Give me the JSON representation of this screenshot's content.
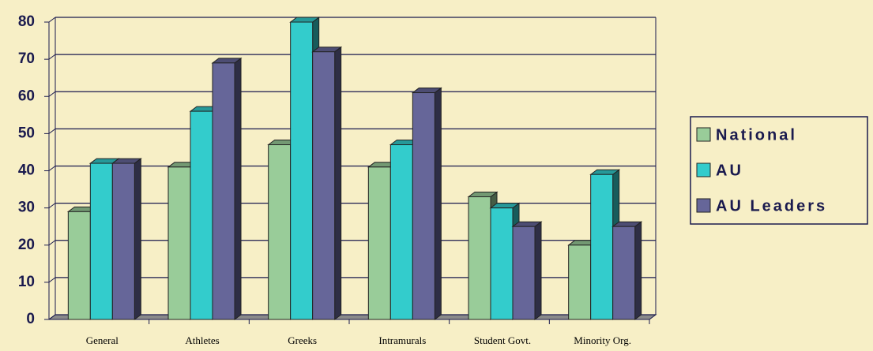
{
  "chart_data": {
    "type": "bar",
    "categories": [
      "General",
      "Athletes",
      "Greeks",
      "Intramurals",
      "Student Govt.",
      "Minority Org."
    ],
    "series": [
      {
        "name": "National",
        "color": "#99cc99",
        "values": [
          29,
          41,
          47,
          41,
          33,
          20
        ]
      },
      {
        "name": "AU",
        "color": "#33cccc",
        "values": [
          42,
          56,
          80,
          47,
          30,
          39
        ]
      },
      {
        "name": "AU Leaders",
        "color": "#666699",
        "values": [
          42,
          69,
          72,
          61,
          25,
          25
        ]
      }
    ],
    "ylim": [
      0,
      80
    ],
    "yticks": [
      0,
      10,
      20,
      30,
      40,
      50,
      60,
      70,
      80
    ],
    "grid": true,
    "legend": "right"
  }
}
